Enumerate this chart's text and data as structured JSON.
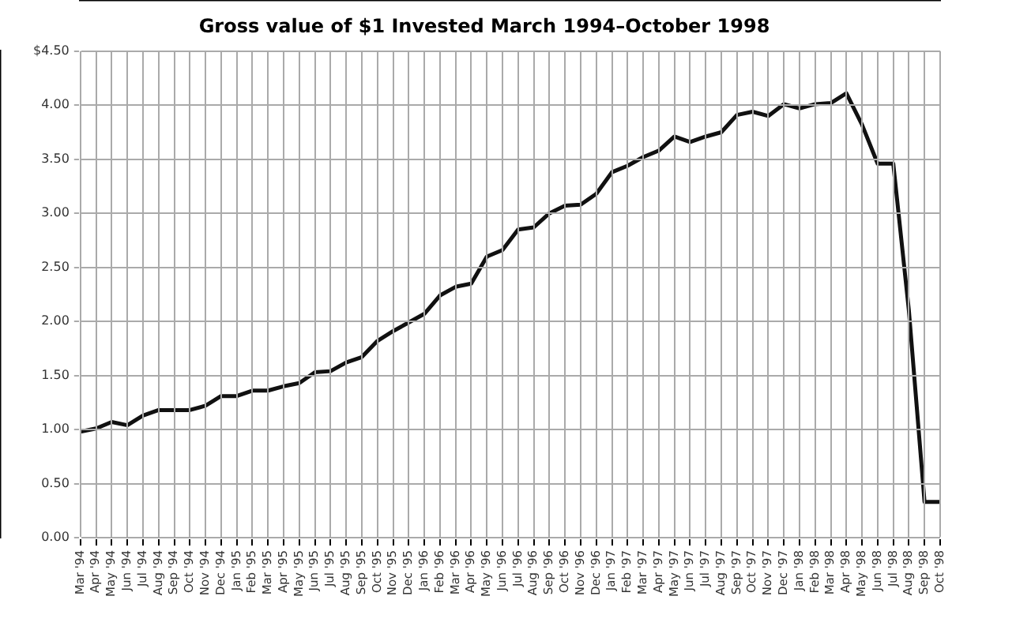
{
  "chart_data": {
    "type": "line",
    "title": "Gross value of $1 Invested March 1994–October 1998",
    "categories": [
      "Mar '94",
      "Apr '94",
      "May '94",
      "Jun '94",
      "Jul '94",
      "Aug '94",
      "Sep '94",
      "Oct '94",
      "Nov '94",
      "Dec '94",
      "Jan '95",
      "Feb '95",
      "Mar '95",
      "Apr '95",
      "May '95",
      "Jun '95",
      "Jul '95",
      "Aug '95",
      "Sep '95",
      "Oct '95",
      "Nov '95",
      "Dec '95",
      "Jan '96",
      "Feb '96",
      "Mar '96",
      "Apr '96",
      "May '96",
      "Jun '96",
      "Jul '96",
      "Aug '96",
      "Sep '96",
      "Oct '96",
      "Nov '96",
      "Dec '96",
      "Jan '97",
      "Feb '97",
      "Mar '97",
      "Apr '97",
      "May '97",
      "Jun '97",
      "Jul '97",
      "Aug '97",
      "Sep '97",
      "Oct '97",
      "Nov '97",
      "Dec '97",
      "Jan '98",
      "Feb '98",
      "Mar '98",
      "Apr '98",
      "May '98",
      "Jun '98",
      "Jul '98",
      "Aug '98",
      "Sep '98",
      "Oct '98"
    ],
    "series": [
      {
        "color": "#111111",
        "values": [
          0.98,
          1.01,
          1.07,
          1.04,
          1.13,
          1.18,
          1.18,
          1.18,
          1.22,
          1.31,
          1.31,
          1.36,
          1.36,
          1.4,
          1.43,
          1.53,
          1.54,
          1.62,
          1.67,
          1.82,
          1.91,
          1.99,
          2.07,
          2.24,
          2.32,
          2.35,
          2.6,
          2.66,
          2.85,
          2.87,
          3.0,
          3.07,
          3.08,
          3.18,
          3.38,
          3.44,
          3.52,
          3.58,
          3.71,
          3.66,
          3.71,
          3.75,
          3.91,
          3.94,
          3.9,
          4.01,
          3.97,
          4.01,
          4.02,
          4.11,
          3.82,
          3.46,
          3.46,
          2.1,
          0.33,
          0.33
        ]
      }
    ],
    "ylim": [
      0,
      4.5
    ],
    "yticks": [
      {
        "value": 0,
        "label": "0.00"
      },
      {
        "value": 0.5,
        "label": "0.50"
      },
      {
        "value": 1,
        "label": "1.00"
      },
      {
        "value": 1.5,
        "label": "1.50"
      },
      {
        "value": 2,
        "label": "2.00"
      },
      {
        "value": 2.5,
        "label": "2.50"
      },
      {
        "value": 3,
        "label": "3.00"
      },
      {
        "value": 3.5,
        "label": "3.50"
      },
      {
        "value": 4,
        "label": "4.00"
      },
      {
        "value": 4.5,
        "label": "$4.50"
      }
    ],
    "grid": true,
    "legend": false,
    "marker": "none",
    "line_style": "solid"
  }
}
